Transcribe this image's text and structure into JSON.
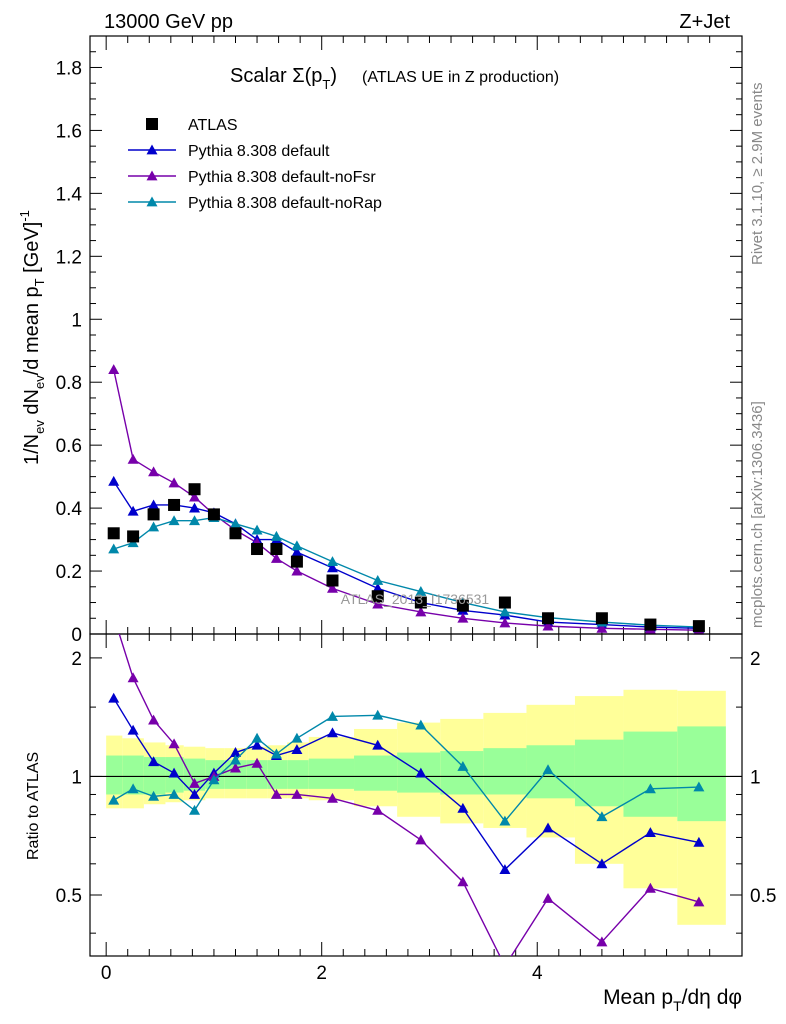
{
  "header": {
    "left": "13000 GeV pp",
    "right": "Z+Jet"
  },
  "side_labels": {
    "rivet": "Rivet 3.1.10, ≥ 2.9M events",
    "site": "mcplots.cern.ch [arXiv:1306.3436]"
  },
  "watermark": "ATLAS_2013_I1736531",
  "chart_data": [
    {
      "type": "line",
      "title": "Scalar Σ(p_T) (ATLAS UE in Z production)",
      "ylabel": "1/N_ev dN_ev/d mean p_T [GeV]^-1",
      "xlim": [
        -0.15,
        5.9
      ],
      "ylim": [
        0,
        1.9
      ],
      "yticks": [
        0,
        0.2,
        0.4,
        0.6,
        0.8,
        1,
        1.2,
        1.4,
        1.6,
        1.8
      ],
      "ytick_labels": [
        "0",
        "0.2",
        "0.4",
        "0.6",
        "0.8",
        "1",
        "1.2",
        "1.4",
        "1.6",
        "1.8"
      ],
      "legend": [
        "ATLAS",
        "Pythia 8.308 default",
        "Pythia 8.308 default-noFsr",
        "Pythia 8.308 default-noRap"
      ],
      "legend_position": "top-left",
      "colors": {
        "data": "#000000",
        "default": "#0000cc",
        "noFsr": "#7700aa",
        "noRap": "#0088aa"
      },
      "x": [
        0.07,
        0.25,
        0.44,
        0.63,
        0.82,
        1.0,
        1.2,
        1.4,
        1.58,
        1.77,
        2.1,
        2.52,
        2.92,
        3.31,
        3.7,
        4.1,
        4.6,
        5.05,
        5.5
      ],
      "series": [
        {
          "name": "ATLAS",
          "style": "square",
          "values": [
            0.32,
            0.31,
            0.38,
            0.41,
            0.46,
            0.38,
            0.32,
            0.27,
            0.27,
            0.23,
            0.17,
            0.12,
            0.1,
            0.09,
            0.1,
            0.05,
            0.05,
            0.03,
            0.025
          ]
        },
        {
          "name": "Pythia 8.308 default",
          "style": "triangle",
          "values": [
            0.485,
            0.39,
            0.41,
            0.41,
            0.4,
            0.385,
            0.35,
            0.3,
            0.3,
            0.26,
            0.21,
            0.145,
            0.1,
            0.075,
            0.06,
            0.038,
            0.03,
            0.022,
            0.018
          ]
        },
        {
          "name": "Pythia 8.308 default-noFsr",
          "style": "triangle",
          "values": [
            0.84,
            0.555,
            0.515,
            0.48,
            0.435,
            0.38,
            0.33,
            0.29,
            0.24,
            0.2,
            0.145,
            0.095,
            0.07,
            0.05,
            0.035,
            0.025,
            0.018,
            0.015,
            0.012
          ]
        },
        {
          "name": "Pythia 8.308 default-noRap",
          "style": "triangle",
          "values": [
            0.27,
            0.29,
            0.34,
            0.36,
            0.36,
            0.37,
            0.35,
            0.33,
            0.31,
            0.28,
            0.23,
            0.17,
            0.135,
            0.1,
            0.07,
            0.052,
            0.038,
            0.028,
            0.022
          ]
        }
      ]
    },
    {
      "type": "line",
      "ylabel": "Ratio to ATLAS",
      "xlabel": "Mean p_T/dη dφ",
      "xlim": [
        -0.15,
        5.9
      ],
      "ylim": [
        0.35,
        2.3
      ],
      "log_y": true,
      "xticks": [
        0,
        2,
        4
      ],
      "xtick_labels": [
        "0",
        "2",
        "4"
      ],
      "yticks": [
        0.5,
        1,
        2
      ],
      "ytick_labels": [
        "0.5",
        "1",
        "2"
      ],
      "x": [
        0.07,
        0.25,
        0.44,
        0.63,
        0.82,
        1.0,
        1.2,
        1.4,
        1.58,
        1.77,
        2.1,
        2.52,
        2.92,
        3.31,
        3.7,
        4.1,
        4.6,
        5.05,
        5.5
      ],
      "bin_edges": [
        0.0,
        0.15,
        0.35,
        0.55,
        0.72,
        0.92,
        1.1,
        1.3,
        1.5,
        1.68,
        1.88,
        2.3,
        2.7,
        3.1,
        3.5,
        3.9,
        4.35,
        4.8,
        5.3,
        5.75
      ],
      "bands": {
        "inner_color": "#99ff99",
        "outer_color": "#ffff99",
        "inner_lo": [
          0.9,
          0.9,
          0.9,
          0.91,
          0.92,
          0.93,
          0.93,
          0.93,
          0.93,
          0.93,
          0.93,
          0.92,
          0.91,
          0.9,
          0.9,
          0.88,
          0.84,
          0.79,
          0.77
        ],
        "inner_hi": [
          1.13,
          1.13,
          1.12,
          1.12,
          1.11,
          1.1,
          1.1,
          1.1,
          1.1,
          1.1,
          1.11,
          1.13,
          1.15,
          1.16,
          1.18,
          1.2,
          1.24,
          1.3,
          1.34
        ],
        "outer_lo": [
          0.83,
          0.83,
          0.85,
          0.86,
          0.87,
          0.88,
          0.88,
          0.88,
          0.88,
          0.88,
          0.87,
          0.84,
          0.79,
          0.76,
          0.74,
          0.7,
          0.6,
          0.52,
          0.42
        ],
        "outer_hi": [
          1.27,
          1.25,
          1.22,
          1.2,
          1.19,
          1.18,
          1.18,
          1.19,
          1.2,
          1.22,
          1.26,
          1.32,
          1.37,
          1.4,
          1.45,
          1.52,
          1.6,
          1.66,
          1.65
        ]
      },
      "series": [
        {
          "name": "Pythia 8.308 default",
          "values": [
            1.58,
            1.31,
            1.09,
            1.02,
            0.9,
            1.02,
            1.15,
            1.2,
            1.13,
            1.17,
            1.29,
            1.2,
            1.02,
            0.83,
            0.58,
            0.74,
            0.6,
            0.72,
            0.68
          ]
        },
        {
          "name": "Pythia 8.308 default-noFsr",
          "values": [
            2.55,
            1.78,
            1.39,
            1.21,
            0.96,
            1.0,
            1.05,
            1.08,
            0.9,
            0.9,
            0.88,
            0.82,
            0.69,
            0.54,
            0.33,
            0.49,
            0.38,
            0.52,
            0.48
          ]
        },
        {
          "name": "Pythia 8.308 default-noRap",
          "values": [
            0.87,
            0.93,
            0.89,
            0.9,
            0.82,
            0.98,
            1.1,
            1.25,
            1.14,
            1.25,
            1.42,
            1.43,
            1.35,
            1.06,
            0.77,
            1.04,
            0.79,
            0.93,
            0.94
          ]
        }
      ]
    }
  ]
}
